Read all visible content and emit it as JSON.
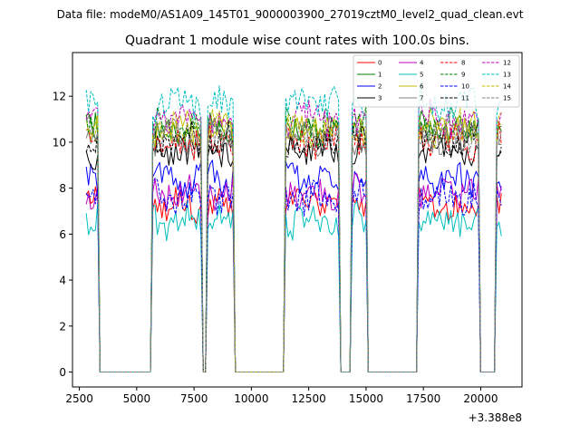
{
  "suptitle": "Data file: modeM0/AS1A09_145T01_9000003900_27019cztM0_level2_quad_clean.evt",
  "chart_data": {
    "type": "line",
    "title": "Quadrant 1 module wise count rates with 100.0s bins.",
    "xlabel": "",
    "ylabel": "",
    "x_offset_label": "+3.388e8",
    "xlim": [
      2200,
      21800
    ],
    "ylim": [
      -0.65,
      13.9
    ],
    "xticks": [
      2500,
      5000,
      7500,
      10000,
      12500,
      15000,
      17500,
      20000
    ],
    "xtick_labels": [
      "2500",
      "5000",
      "7500",
      "10000",
      "12500",
      "15000",
      "17500",
      "20000"
    ],
    "yticks": [
      0,
      2,
      4,
      6,
      8,
      10,
      12
    ],
    "ytick_labels": [
      "0",
      "2",
      "4",
      "6",
      "8",
      "10",
      "12"
    ],
    "grid": false,
    "legend_position": "top-right",
    "legend_columns": 4,
    "active_intervals": [
      [
        2800,
        3300
      ],
      [
        5650,
        7800
      ],
      [
        8100,
        9200
      ],
      [
        11500,
        13800
      ],
      [
        14400,
        15000
      ],
      [
        17300,
        19900
      ],
      [
        20700,
        20950
      ]
    ],
    "bin_width": 100,
    "x_start": 2800,
    "x_end": 20950,
    "series": [
      {
        "name": "0",
        "color": "#ff0000",
        "dash": "solid",
        "mean": 7.3
      },
      {
        "name": "1",
        "color": "#008000",
        "dash": "solid",
        "mean": 10.5
      },
      {
        "name": "2",
        "color": "#0000ff",
        "dash": "solid",
        "mean": 8.4
      },
      {
        "name": "3",
        "color": "#000000",
        "dash": "solid",
        "mean": 9.6
      },
      {
        "name": "4",
        "color": "#bf00bf",
        "dash": "solid",
        "mean": 7.8
      },
      {
        "name": "5",
        "color": "#00bfbf",
        "dash": "solid",
        "mean": 6.6
      },
      {
        "name": "6",
        "color": "#bfbf00",
        "dash": "solid",
        "mean": 10.6
      },
      {
        "name": "7",
        "color": "#808080",
        "dash": "solid",
        "mean": 10.2
      },
      {
        "name": "8",
        "color": "#ff0000",
        "dash": "dashed",
        "mean": 10.0
      },
      {
        "name": "9",
        "color": "#008000",
        "dash": "dashed",
        "mean": 10.7
      },
      {
        "name": "10",
        "color": "#0000ff",
        "dash": "dashed",
        "mean": 7.6
      },
      {
        "name": "11",
        "color": "#000000",
        "dash": "dashed",
        "mean": 10.1
      },
      {
        "name": "12",
        "color": "#bf00bf",
        "dash": "dashed",
        "mean": 11.0
      },
      {
        "name": "13",
        "color": "#00bfbf",
        "dash": "dashed",
        "mean": 11.7
      },
      {
        "name": "14",
        "color": "#bfbf00",
        "dash": "dashed",
        "mean": 10.6
      },
      {
        "name": "15",
        "color": "#808080",
        "dash": "dashed",
        "mean": 10.4
      }
    ]
  }
}
